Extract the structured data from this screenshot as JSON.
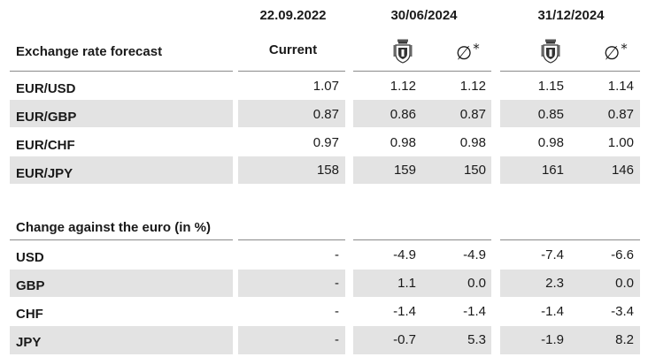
{
  "dates": {
    "current": "22.09.2022",
    "mid": "30/06/2024",
    "end": "31/12/2024"
  },
  "header": {
    "section_title": "Exchange rate forecast",
    "current_label": "Current",
    "consensus_symbol": "∅",
    "consensus_mark": "*",
    "bank_icon": "crest-icon"
  },
  "forecast_rows": [
    {
      "label": "EUR/USD",
      "current": "1.07",
      "mid_bank": "1.12",
      "mid_cons": "1.12",
      "end_bank": "1.15",
      "end_cons": "1.14"
    },
    {
      "label": "EUR/GBP",
      "current": "0.87",
      "mid_bank": "0.86",
      "mid_cons": "0.87",
      "end_bank": "0.85",
      "end_cons": "0.87"
    },
    {
      "label": "EUR/CHF",
      "current": "0.97",
      "mid_bank": "0.98",
      "mid_cons": "0.98",
      "end_bank": "0.98",
      "end_cons": "1.00"
    },
    {
      "label": "EUR/JPY",
      "current": "158",
      "mid_bank": "159",
      "mid_cons": "150",
      "end_bank": "161",
      "end_cons": "146"
    }
  ],
  "change_title": "Change against the euro (in %)",
  "change_rows": [
    {
      "label": "USD",
      "current": "-",
      "mid_bank": "-4.9",
      "mid_cons": "-4.9",
      "end_bank": "-7.4",
      "end_cons": "-6.6"
    },
    {
      "label": "GBP",
      "current": "-",
      "mid_bank": "1.1",
      "mid_cons": "0.0",
      "end_bank": "2.3",
      "end_cons": "0.0"
    },
    {
      "label": "CHF",
      "current": "-",
      "mid_bank": "-1.4",
      "mid_cons": "-1.4",
      "end_bank": "-1.4",
      "end_cons": "-3.4"
    },
    {
      "label": "JPY",
      "current": "-",
      "mid_bank": "-0.7",
      "mid_cons": "5.3",
      "end_bank": "-1.9",
      "end_cons": "8.2"
    }
  ],
  "colors": {
    "shade": "#e3e3e3",
    "rule": "#8a8a8a",
    "text": "#1a1a1a"
  }
}
